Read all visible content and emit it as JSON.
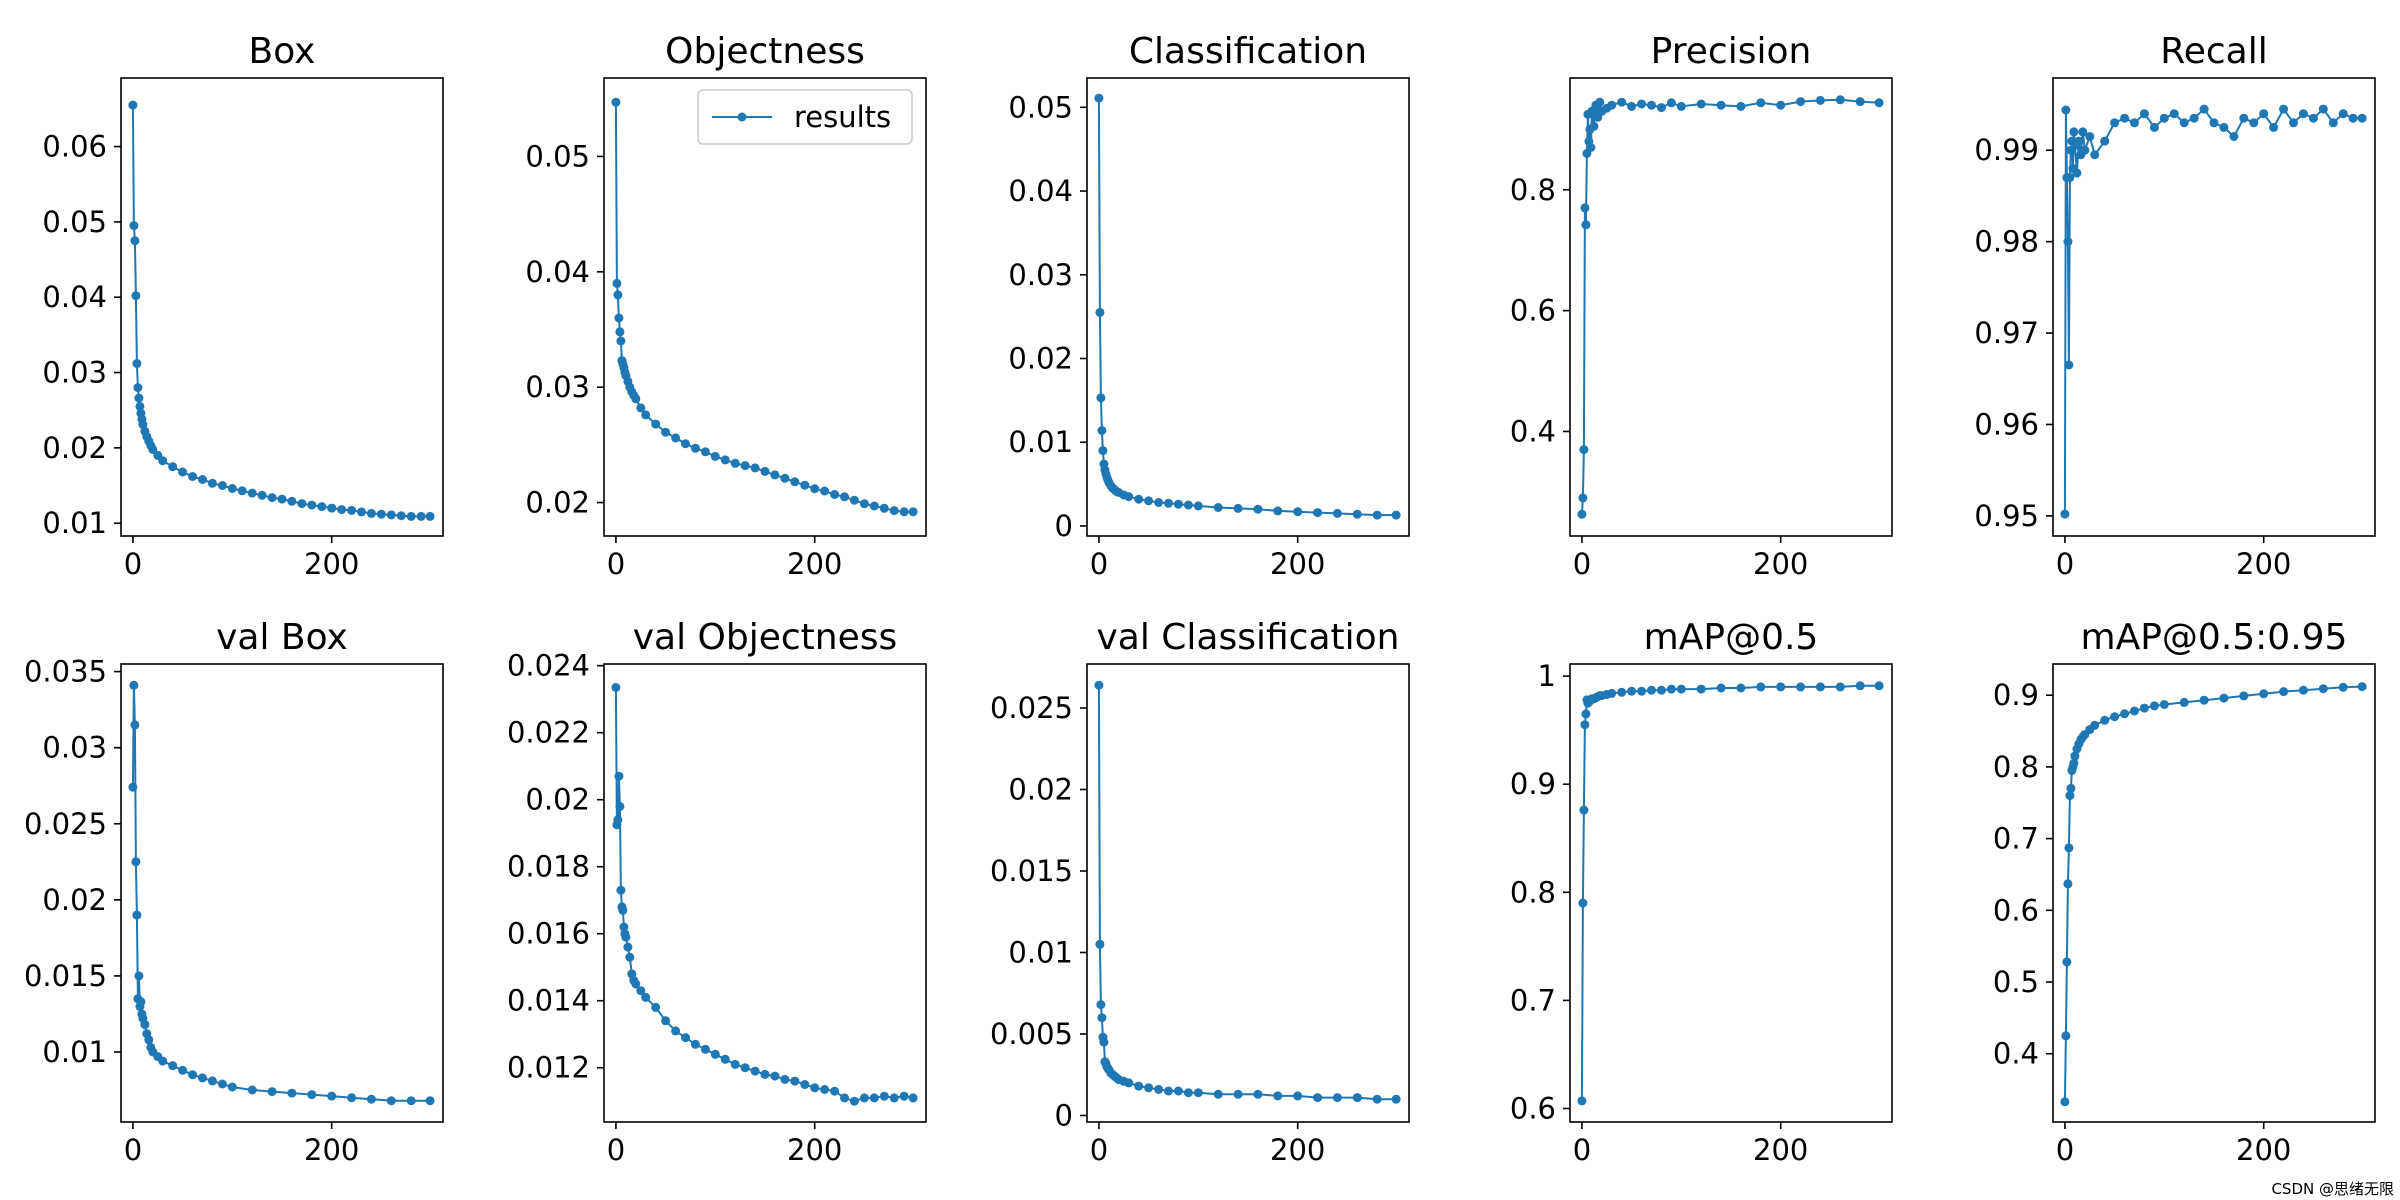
{
  "figure": {
    "legend_label": "results",
    "watermark": "CSDN @思绪无限"
  },
  "colors": {
    "series": "#1f77b4"
  },
  "chart_data": [
    {
      "type": "line",
      "title": "Box",
      "xlabel": "",
      "ylabel": "",
      "xlim": [
        -12,
        312
      ],
      "ylim": [
        0.0083,
        0.0691
      ],
      "xticks": [
        0,
        200
      ],
      "yticks": [
        0.01,
        0.02,
        0.03,
        0.04,
        0.05,
        0.06
      ],
      "series": [
        {
          "name": "results",
          "x": [
            0,
            1,
            2,
            3,
            4,
            5,
            6,
            7,
            8,
            9,
            10,
            12,
            14,
            16,
            18,
            20,
            25,
            30,
            40,
            50,
            60,
            70,
            80,
            90,
            100,
            110,
            120,
            130,
            140,
            150,
            160,
            170,
            180,
            190,
            200,
            210,
            220,
            230,
            240,
            250,
            260,
            270,
            280,
            290,
            299
          ],
          "y": [
            0.0655,
            0.0495,
            0.0475,
            0.0402,
            0.0312,
            0.028,
            0.0266,
            0.0255,
            0.0246,
            0.0238,
            0.0231,
            0.0222,
            0.0215,
            0.0209,
            0.0203,
            0.0198,
            0.019,
            0.0183,
            0.0175,
            0.0168,
            0.0162,
            0.0158,
            0.0153,
            0.015,
            0.0146,
            0.0143,
            0.014,
            0.0137,
            0.0134,
            0.0132,
            0.0129,
            0.0126,
            0.0124,
            0.0122,
            0.012,
            0.0118,
            0.0117,
            0.0115,
            0.0113,
            0.0112,
            0.0111,
            0.011,
            0.0109,
            0.0109,
            0.0109
          ]
        }
      ]
    },
    {
      "type": "line",
      "title": "Objectness",
      "xlabel": "",
      "ylabel": "",
      "xlim": [
        -12,
        312
      ],
      "ylim": [
        0.0171,
        0.0568
      ],
      "xticks": [
        0,
        200
      ],
      "yticks": [
        0.02,
        0.03,
        0.04,
        0.05
      ],
      "legend": "upper right",
      "series": [
        {
          "name": "results",
          "x": [
            0,
            1,
            2,
            3,
            4,
            5,
            6,
            7,
            8,
            9,
            10,
            12,
            14,
            16,
            18,
            20,
            25,
            30,
            40,
            50,
            60,
            70,
            80,
            90,
            100,
            110,
            120,
            130,
            140,
            150,
            160,
            170,
            180,
            190,
            200,
            210,
            220,
            230,
            240,
            250,
            260,
            270,
            280,
            290,
            299
          ],
          "y": [
            0.0547,
            0.039,
            0.038,
            0.036,
            0.0348,
            0.034,
            0.0323,
            0.032,
            0.0317,
            0.0313,
            0.031,
            0.0305,
            0.03,
            0.0296,
            0.0293,
            0.029,
            0.0282,
            0.0276,
            0.0268,
            0.0261,
            0.0256,
            0.0251,
            0.0247,
            0.0244,
            0.024,
            0.0237,
            0.0234,
            0.0232,
            0.023,
            0.0227,
            0.0224,
            0.0221,
            0.0218,
            0.0215,
            0.0212,
            0.021,
            0.0207,
            0.0205,
            0.0202,
            0.0199,
            0.0197,
            0.0195,
            0.0193,
            0.0192,
            0.0192
          ]
        }
      ]
    },
    {
      "type": "line",
      "title": "Classification",
      "xlabel": "",
      "ylabel": "",
      "xlim": [
        -12,
        312
      ],
      "ylim": [
        -0.0012,
        0.0535
      ],
      "xticks": [
        0,
        200
      ],
      "yticks": [
        0.0,
        0.01,
        0.02,
        0.03,
        0.04,
        0.05
      ],
      "series": [
        {
          "name": "results",
          "x": [
            0,
            1,
            2,
            3,
            4,
            5,
            6,
            7,
            8,
            9,
            10,
            12,
            14,
            16,
            18,
            20,
            25,
            30,
            40,
            50,
            60,
            70,
            80,
            90,
            100,
            120,
            140,
            160,
            180,
            200,
            220,
            240,
            260,
            280,
            299
          ],
          "y": [
            0.0511,
            0.0255,
            0.0153,
            0.0114,
            0.009,
            0.0074,
            0.0067,
            0.0062,
            0.0058,
            0.0055,
            0.0052,
            0.0048,
            0.0045,
            0.0043,
            0.0041,
            0.004,
            0.0037,
            0.0035,
            0.0032,
            0.003,
            0.0028,
            0.0027,
            0.0026,
            0.0025,
            0.0024,
            0.0022,
            0.0021,
            0.002,
            0.0018,
            0.0017,
            0.0016,
            0.0015,
            0.0014,
            0.0013,
            0.0013
          ]
        }
      ]
    },
    {
      "type": "line",
      "title": "Precision",
      "xlabel": "",
      "ylabel": "",
      "xlim": [
        -12,
        312
      ],
      "ylim": [
        0.227,
        0.985
      ],
      "xticks": [
        0,
        200
      ],
      "yticks": [
        0.4,
        0.6,
        0.8
      ],
      "series": [
        {
          "name": "results",
          "x": [
            0,
            1,
            2,
            3,
            4,
            5,
            6,
            7,
            8,
            9,
            10,
            12,
            14,
            16,
            18,
            20,
            25,
            30,
            40,
            50,
            60,
            70,
            80,
            90,
            100,
            120,
            140,
            160,
            180,
            200,
            220,
            240,
            260,
            280,
            299
          ],
          "y": [
            0.263,
            0.29,
            0.37,
            0.77,
            0.742,
            0.86,
            0.925,
            0.88,
            0.9,
            0.87,
            0.93,
            0.905,
            0.94,
            0.92,
            0.945,
            0.93,
            0.935,
            0.94,
            0.945,
            0.938,
            0.942,
            0.94,
            0.936,
            0.944,
            0.938,
            0.942,
            0.94,
            0.938,
            0.944,
            0.94,
            0.946,
            0.948,
            0.949,
            0.946,
            0.944
          ]
        }
      ]
    },
    {
      "type": "line",
      "title": "Recall",
      "xlabel": "",
      "ylabel": "",
      "xlim": [
        -12,
        312
      ],
      "ylim": [
        0.9478,
        0.9979
      ],
      "xticks": [
        0,
        200
      ],
      "yticks": [
        0.95,
        0.96,
        0.97,
        0.98,
        0.99
      ],
      "series": [
        {
          "name": "results",
          "x": [
            0,
            1,
            2,
            3,
            4,
            5,
            6,
            7,
            8,
            9,
            10,
            12,
            14,
            16,
            18,
            20,
            25,
            30,
            40,
            50,
            60,
            70,
            80,
            90,
            100,
            110,
            120,
            130,
            140,
            150,
            160,
            170,
            180,
            190,
            200,
            210,
            220,
            230,
            240,
            250,
            260,
            270,
            280,
            290,
            299
          ],
          "y": [
            0.9502,
            0.9944,
            0.987,
            0.98,
            0.9665,
            0.987,
            0.99,
            0.991,
            0.988,
            0.992,
            0.9905,
            0.9875,
            0.991,
            0.9895,
            0.992,
            0.99,
            0.9915,
            0.9895,
            0.991,
            0.993,
            0.9935,
            0.993,
            0.994,
            0.9925,
            0.9935,
            0.994,
            0.993,
            0.9935,
            0.9945,
            0.993,
            0.9925,
            0.9915,
            0.9935,
            0.993,
            0.994,
            0.9925,
            0.9945,
            0.993,
            0.994,
            0.9935,
            0.9945,
            0.993,
            0.994,
            0.9935,
            0.9935
          ]
        }
      ]
    },
    {
      "type": "line",
      "title": "val Box",
      "xlabel": "",
      "ylabel": "",
      "xlim": [
        -12,
        312
      ],
      "ylim": [
        0.0054,
        0.0355
      ],
      "xticks": [
        0,
        200
      ],
      "yticks": [
        0.01,
        0.015,
        0.02,
        0.025,
        0.03,
        0.035
      ],
      "series": [
        {
          "name": "results",
          "x": [
            0,
            1,
            2,
            3,
            4,
            5,
            6,
            7,
            8,
            9,
            10,
            12,
            14,
            16,
            18,
            20,
            25,
            30,
            40,
            50,
            60,
            70,
            80,
            90,
            100,
            120,
            140,
            160,
            180,
            200,
            220,
            240,
            260,
            280,
            299
          ],
          "y": [
            0.0274,
            0.0341,
            0.0315,
            0.0225,
            0.019,
            0.0135,
            0.015,
            0.013,
            0.0133,
            0.0125,
            0.0122,
            0.0118,
            0.0112,
            0.0108,
            0.0103,
            0.01,
            0.0097,
            0.0094,
            0.0091,
            0.0088,
            0.0085,
            0.0083,
            0.0081,
            0.0079,
            0.0077,
            0.0075,
            0.0074,
            0.0073,
            0.0072,
            0.0071,
            0.007,
            0.0069,
            0.0068,
            0.0068,
            0.0068
          ]
        }
      ]
    },
    {
      "type": "line",
      "title": "val Objectness",
      "xlabel": "",
      "ylabel": "",
      "xlim": [
        -12,
        312
      ],
      "ylim": [
        0.01038,
        0.02405
      ],
      "xticks": [
        0,
        200
      ],
      "yticks": [
        0.012,
        0.014,
        0.016,
        0.018,
        0.02,
        0.022,
        0.024
      ],
      "series": [
        {
          "name": "results",
          "x": [
            0,
            1,
            2,
            3,
            4,
            5,
            6,
            7,
            8,
            9,
            10,
            12,
            14,
            16,
            18,
            20,
            25,
            30,
            40,
            50,
            60,
            70,
            80,
            90,
            100,
            110,
            120,
            130,
            140,
            150,
            160,
            170,
            180,
            190,
            200,
            210,
            220,
            230,
            240,
            250,
            260,
            270,
            280,
            290,
            299
          ],
          "y": [
            0.02335,
            0.01925,
            0.0194,
            0.0207,
            0.0198,
            0.0173,
            0.0168,
            0.0167,
            0.0162,
            0.016,
            0.0159,
            0.0156,
            0.0153,
            0.0148,
            0.0146,
            0.0145,
            0.0143,
            0.0141,
            0.0138,
            0.0134,
            0.0131,
            0.0129,
            0.0127,
            0.01255,
            0.0124,
            0.01225,
            0.0121,
            0.012,
            0.0119,
            0.0118,
            0.01175,
            0.01165,
            0.0116,
            0.0115,
            0.0114,
            0.01135,
            0.0113,
            0.0111,
            0.011,
            0.0111,
            0.0111,
            0.01115,
            0.0111,
            0.01115,
            0.0111
          ]
        }
      ]
    },
    {
      "type": "line",
      "title": "val Classification",
      "xlabel": "",
      "ylabel": "",
      "xlim": [
        -12,
        312
      ],
      "ylim": [
        -0.0004,
        0.0277
      ],
      "xticks": [
        0,
        200
      ],
      "yticks": [
        0.0,
        0.005,
        0.01,
        0.015,
        0.02,
        0.025
      ],
      "series": [
        {
          "name": "results",
          "x": [
            0,
            1,
            2,
            3,
            4,
            5,
            6,
            7,
            8,
            9,
            10,
            12,
            14,
            16,
            18,
            20,
            25,
            30,
            40,
            50,
            60,
            70,
            80,
            90,
            100,
            120,
            140,
            160,
            180,
            200,
            220,
            240,
            260,
            280,
            299
          ],
          "y": [
            0.0264,
            0.0105,
            0.0068,
            0.006,
            0.0048,
            0.0045,
            0.0033,
            0.0032,
            0.003,
            0.0029,
            0.0028,
            0.0026,
            0.0025,
            0.0024,
            0.0023,
            0.0022,
            0.0021,
            0.002,
            0.0018,
            0.0017,
            0.0016,
            0.0015,
            0.0015,
            0.0014,
            0.0014,
            0.0013,
            0.0013,
            0.0013,
            0.0012,
            0.0012,
            0.0011,
            0.0011,
            0.0011,
            0.001,
            0.001
          ]
        }
      ]
    },
    {
      "type": "line",
      "title": "mAP@0.5",
      "xlabel": "",
      "ylabel": "",
      "xlim": [
        -12,
        312
      ],
      "ylim": [
        0.5875,
        1.0112
      ],
      "xticks": [
        0,
        200
      ],
      "yticks": [
        0.6,
        0.7,
        0.8,
        0.9,
        1.0
      ],
      "series": [
        {
          "name": "results",
          "x": [
            0,
            1,
            2,
            3,
            4,
            5,
            6,
            7,
            8,
            9,
            10,
            12,
            14,
            16,
            18,
            20,
            25,
            30,
            40,
            50,
            60,
            70,
            80,
            90,
            100,
            120,
            140,
            160,
            180,
            200,
            220,
            240,
            260,
            280,
            299
          ],
          "y": [
            0.607,
            0.79,
            0.876,
            0.955,
            0.965,
            0.978,
            0.975,
            0.976,
            0.977,
            0.978,
            0.979,
            0.979,
            0.98,
            0.981,
            0.982,
            0.982,
            0.983,
            0.984,
            0.985,
            0.986,
            0.986,
            0.987,
            0.987,
            0.988,
            0.988,
            0.988,
            0.989,
            0.989,
            0.99,
            0.99,
            0.99,
            0.99,
            0.99,
            0.991,
            0.991
          ]
        }
      ]
    },
    {
      "type": "line",
      "title": "mAP@0.5:0.95",
      "xlabel": "",
      "ylabel": "",
      "xlim": [
        -12,
        312
      ],
      "ylim": [
        0.3048,
        0.9435
      ],
      "xticks": [
        0,
        200
      ],
      "yticks": [
        0.4,
        0.5,
        0.6,
        0.7,
        0.8,
        0.9
      ],
      "series": [
        {
          "name": "results",
          "x": [
            0,
            1,
            2,
            3,
            4,
            5,
            6,
            7,
            8,
            9,
            10,
            12,
            14,
            16,
            18,
            20,
            25,
            30,
            40,
            50,
            60,
            70,
            80,
            90,
            100,
            120,
            140,
            160,
            180,
            200,
            220,
            240,
            260,
            280,
            299
          ],
          "y": [
            0.333,
            0.425,
            0.528,
            0.637,
            0.687,
            0.76,
            0.77,
            0.795,
            0.8,
            0.805,
            0.815,
            0.825,
            0.832,
            0.838,
            0.842,
            0.845,
            0.852,
            0.858,
            0.865,
            0.87,
            0.874,
            0.878,
            0.882,
            0.885,
            0.887,
            0.89,
            0.893,
            0.896,
            0.899,
            0.902,
            0.905,
            0.907,
            0.909,
            0.911,
            0.912
          ]
        }
      ]
    }
  ]
}
